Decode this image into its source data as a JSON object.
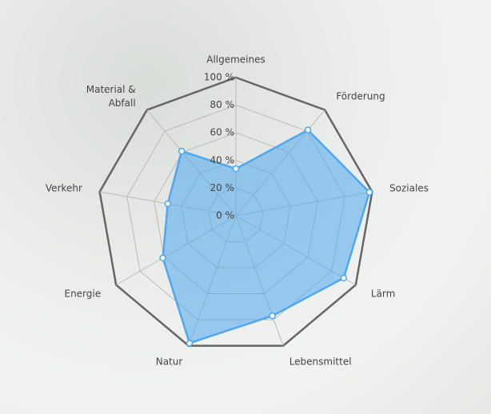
{
  "chart_data": {
    "type": "radar",
    "categories": [
      "Allgemeines",
      "Förderung",
      "Soziales",
      "Lärm",
      "Lebensmittel",
      "Natur",
      "Energie",
      "Verkehr",
      "Material & Abfall"
    ],
    "series": [
      {
        "color": "#4ea8ef",
        "values": [
          34,
          81,
          98,
          90,
          77,
          98,
          61,
          50,
          61
        ]
      }
    ],
    "ylim": [
      0,
      100
    ],
    "yticks": [
      {
        "value": 0,
        "label": "0 %"
      },
      {
        "value": 20,
        "label": "20 %"
      },
      {
        "value": 40,
        "label": "40 %"
      },
      {
        "value": 60,
        "label": "60 %"
      },
      {
        "value": 80,
        "label": "80 %"
      },
      {
        "value": 100,
        "label": "100 %"
      }
    ],
    "grid": true
  }
}
